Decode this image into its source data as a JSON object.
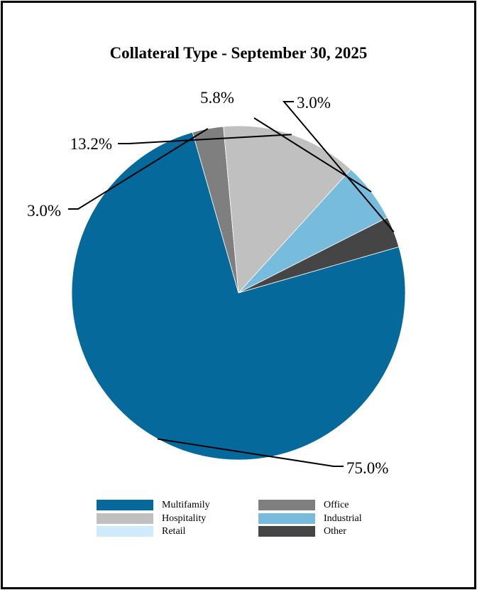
{
  "chart_data": {
    "type": "pie",
    "title": "Collateral Type - September 30, 2025",
    "slices": [
      {
        "label": "Multifamily",
        "value": 75.0,
        "display": "75.0%",
        "color": "#056a9b"
      },
      {
        "label": "Office",
        "value": 3.0,
        "display": "3.0%",
        "color": "#7f7f7f"
      },
      {
        "label": "Hospitality",
        "value": 13.2,
        "display": "13.2%",
        "color": "#c0c0c0"
      },
      {
        "label": "Industrial",
        "value": 5.8,
        "display": "5.8%",
        "color": "#77bcdc"
      },
      {
        "label": "Other",
        "value": 3.0,
        "display": "3.0%",
        "color": "#454545"
      },
      {
        "label": "Retail",
        "value": 0.0,
        "display": "",
        "color": "#cfeaf9"
      }
    ],
    "legend": {
      "placement": "bottom",
      "items": [
        {
          "label": "Multifamily",
          "color": "#056a9b"
        },
        {
          "label": "Office",
          "color": "#7f7f7f"
        },
        {
          "label": "Hospitality",
          "color": "#c0c0c0"
        },
        {
          "label": "Industrial",
          "color": "#77bcdc"
        },
        {
          "label": "Retail",
          "color": "#cfeaf9"
        },
        {
          "label": "Other",
          "color": "#454545"
        }
      ]
    }
  }
}
